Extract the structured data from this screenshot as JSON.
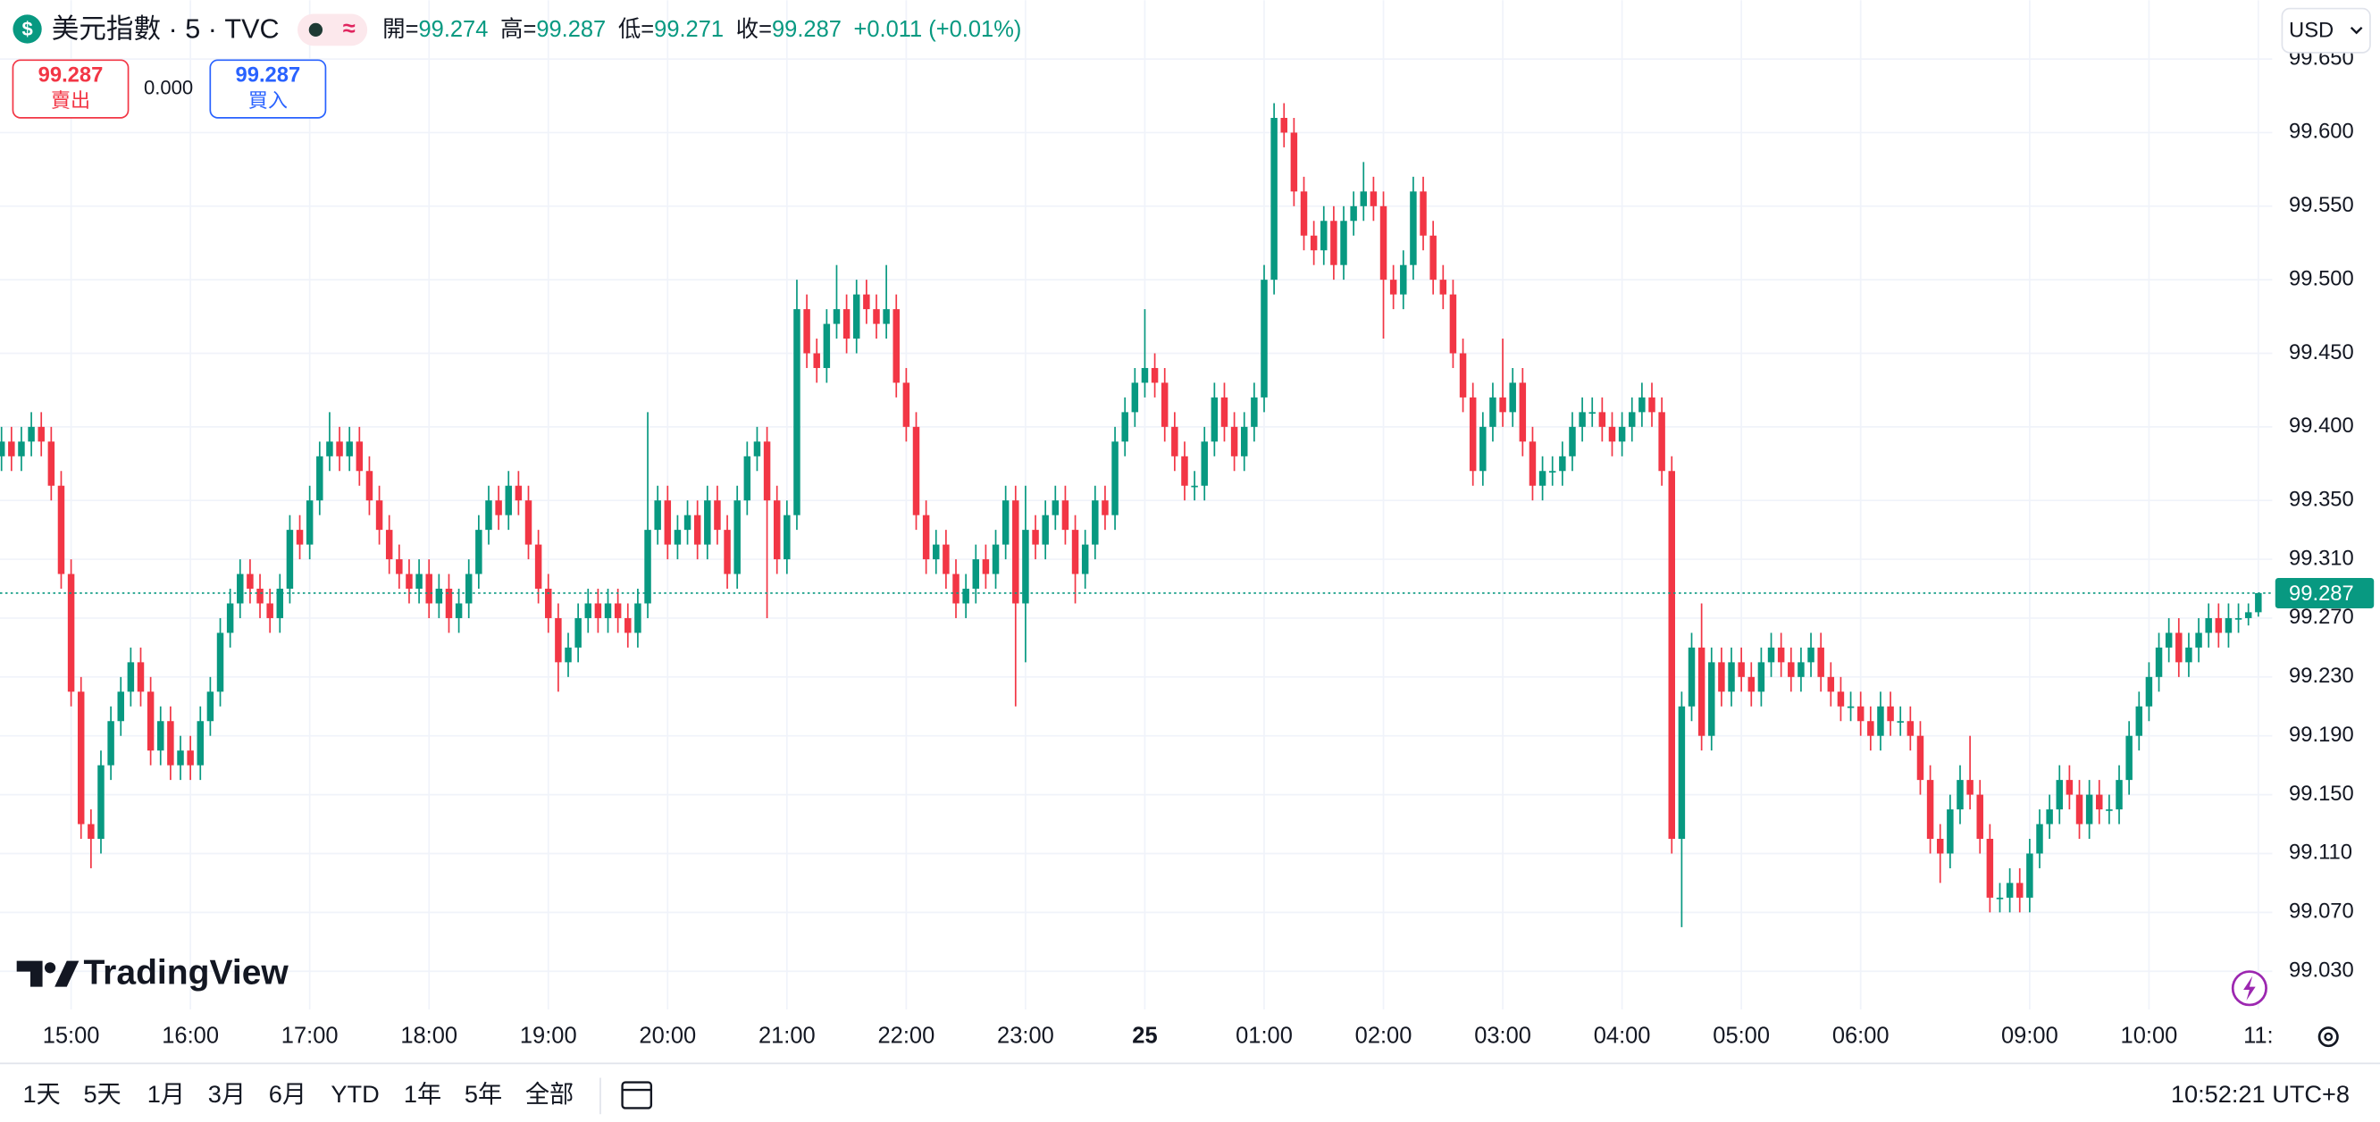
{
  "symbol_icon": "$",
  "status_badge": "≈",
  "quote": {
    "sell_price": "99.287",
    "sell_label": "賣出",
    "spread": "0.000",
    "buy_price": "99.287",
    "buy_label": "買入"
  },
  "currency": "USD",
  "watermark": "TradingView",
  "ranges": [
    "1天",
    "5天",
    "1月",
    "3月",
    "6月",
    "YTD",
    "1年",
    "5年",
    "全部"
  ],
  "clock": "10:52:21 UTC+8",
  "chart_data": {
    "type": "candlestick",
    "title": "美元指數 · 5 · TVC",
    "ohlc_labels": {
      "open": "開=",
      "high": "高=",
      "low": "低=",
      "close": "收="
    },
    "change": "+0.011 (+0.01%)",
    "up_color": "#089981",
    "down_color": "#f23645",
    "grid": true,
    "last_price_line": true,
    "ylim": [
      99.004,
      99.69
    ],
    "yticks": [
      {
        "value": 99.65,
        "label": "99.650"
      },
      {
        "value": 99.6,
        "label": "99.600"
      },
      {
        "value": 99.55,
        "label": "99.550"
      },
      {
        "value": 99.5,
        "label": "99.500"
      },
      {
        "value": 99.45,
        "label": "99.450"
      },
      {
        "value": 99.4,
        "label": "99.400"
      },
      {
        "value": 99.35,
        "label": "99.350"
      },
      {
        "value": 99.31,
        "label": "99.310"
      },
      {
        "value": 99.27,
        "label": "99.270"
      },
      {
        "value": 99.23,
        "label": "99.230"
      },
      {
        "value": 99.19,
        "label": "99.190"
      },
      {
        "value": 99.15,
        "label": "99.150"
      },
      {
        "value": 99.11,
        "label": "99.110"
      },
      {
        "value": 99.07,
        "label": "99.070"
      },
      {
        "value": 99.03,
        "label": "99.030"
      }
    ],
    "categories": [
      null,
      null,
      null,
      null,
      null,
      null,
      null,
      "15:00",
      null,
      null,
      null,
      null,
      null,
      null,
      null,
      null,
      null,
      null,
      null,
      "16:00",
      null,
      null,
      null,
      null,
      null,
      null,
      null,
      null,
      null,
      null,
      null,
      "17:00",
      null,
      null,
      null,
      null,
      null,
      null,
      null,
      null,
      null,
      null,
      null,
      "18:00",
      null,
      null,
      null,
      null,
      null,
      null,
      null,
      null,
      null,
      null,
      null,
      "19:00",
      null,
      null,
      null,
      null,
      null,
      null,
      null,
      null,
      null,
      null,
      null,
      "20:00",
      null,
      null,
      null,
      null,
      null,
      null,
      null,
      null,
      null,
      null,
      null,
      "21:00",
      null,
      null,
      null,
      null,
      null,
      null,
      null,
      null,
      null,
      null,
      null,
      "22:00",
      null,
      null,
      null,
      null,
      null,
      null,
      null,
      null,
      null,
      null,
      null,
      "23:00",
      null,
      null,
      null,
      null,
      null,
      null,
      null,
      null,
      null,
      null,
      null,
      "25",
      null,
      null,
      null,
      null,
      null,
      null,
      null,
      null,
      null,
      null,
      null,
      "01:00",
      null,
      null,
      null,
      null,
      null,
      null,
      null,
      null,
      null,
      null,
      null,
      "02:00",
      null,
      null,
      null,
      null,
      null,
      null,
      null,
      null,
      null,
      null,
      null,
      "03:00",
      null,
      null,
      null,
      null,
      null,
      null,
      null,
      null,
      null,
      null,
      null,
      "04:00",
      null,
      null,
      null,
      null,
      null,
      null,
      null,
      null,
      null,
      null,
      null,
      "05:00",
      null,
      null,
      null,
      null,
      null,
      null,
      null,
      null,
      null,
      null,
      null,
      "06:00",
      null,
      null,
      null,
      null,
      null,
      null,
      null,
      null,
      null,
      null,
      null,
      null,
      null,
      null,
      null,
      null,
      "09:00",
      null,
      null,
      null,
      null,
      null,
      null,
      null,
      null,
      null,
      null,
      null,
      "10:00",
      null,
      null,
      null,
      null,
      null,
      null,
      null,
      null,
      null,
      null,
      "11:"
    ],
    "open": [
      99.38,
      99.39,
      99.38,
      99.39,
      99.4,
      99.39,
      99.36,
      99.3,
      99.22,
      99.13,
      99.12,
      99.17,
      99.2,
      99.22,
      99.24,
      99.22,
      99.18,
      99.2,
      99.17,
      99.18,
      99.17,
      99.2,
      99.22,
      99.26,
      99.28,
      99.3,
      99.29,
      99.28,
      99.27,
      99.29,
      99.33,
      99.32,
      99.35,
      99.38,
      99.39,
      99.38,
      99.39,
      99.37,
      99.35,
      99.33,
      99.31,
      99.3,
      99.29,
      99.3,
      99.28,
      99.29,
      99.27,
      99.28,
      99.3,
      99.33,
      99.35,
      99.34,
      99.36,
      99.35,
      99.32,
      99.29,
      99.27,
      99.24,
      99.25,
      99.27,
      99.28,
      99.27,
      99.28,
      99.27,
      99.26,
      99.28,
      99.33,
      99.35,
      99.32,
      99.33,
      99.34,
      99.32,
      99.35,
      99.33,
      99.3,
      99.35,
      99.38,
      99.39,
      99.35,
      99.31,
      99.34,
      99.48,
      99.45,
      99.44,
      99.47,
      99.48,
      99.46,
      99.49,
      99.48,
      99.47,
      99.48,
      99.43,
      99.4,
      99.34,
      99.31,
      99.32,
      99.3,
      99.28,
      99.29,
      99.31,
      99.3,
      99.32,
      99.35,
      99.28,
      99.33,
      99.32,
      99.34,
      99.35,
      99.33,
      99.3,
      99.32,
      99.35,
      99.34,
      99.39,
      99.41,
      99.43,
      99.44,
      99.43,
      99.4,
      99.38,
      99.36,
      99.36,
      99.39,
      99.42,
      99.4,
      99.38,
      99.4,
      99.42,
      99.5,
      99.61,
      99.6,
      99.56,
      99.53,
      99.52,
      99.54,
      99.51,
      99.54,
      99.55,
      99.56,
      99.55,
      99.5,
      99.49,
      99.51,
      99.56,
      99.53,
      99.5,
      99.49,
      99.45,
      99.42,
      99.37,
      99.4,
      99.42,
      99.41,
      99.43,
      99.39,
      99.36,
      99.37,
      99.37,
      99.38,
      99.4,
      99.41,
      99.41,
      99.4,
      99.39,
      99.4,
      99.41,
      99.42,
      99.41,
      99.37,
      99.12,
      99.21,
      99.25,
      99.19,
      99.24,
      99.22,
      99.24,
      99.23,
      99.22,
      99.24,
      99.25,
      99.24,
      99.23,
      99.24,
      99.25,
      99.23,
      99.22,
      99.21,
      99.21,
      99.2,
      99.19,
      99.21,
      99.2,
      99.2,
      99.19,
      99.16,
      99.12,
      99.11,
      99.14,
      99.16,
      99.15,
      99.12,
      99.08,
      99.08,
      99.09,
      99.08,
      99.11,
      99.13,
      99.14,
      99.16,
      99.15,
      99.13,
      99.15,
      99.14,
      99.14,
      99.16,
      99.19,
      99.21,
      99.23,
      99.25,
      99.26,
      99.24,
      99.25,
      99.26,
      99.27,
      99.26,
      99.27,
      99.27,
      99.274
    ],
    "high": [
      99.4,
      99.4,
      99.4,
      99.41,
      99.41,
      99.4,
      99.37,
      99.31,
      99.23,
      99.14,
      99.18,
      99.21,
      99.23,
      99.25,
      99.25,
      99.23,
      99.21,
      99.21,
      99.19,
      99.19,
      99.21,
      99.23,
      99.27,
      99.29,
      99.31,
      99.31,
      99.3,
      99.29,
      99.3,
      99.34,
      99.34,
      99.36,
      99.39,
      99.41,
      99.4,
      99.4,
      99.4,
      99.38,
      99.36,
      99.34,
      99.32,
      99.31,
      99.31,
      99.31,
      99.3,
      99.3,
      99.29,
      99.31,
      99.34,
      99.36,
      99.36,
      99.37,
      99.37,
      99.36,
      99.33,
      99.3,
      99.28,
      99.26,
      99.28,
      99.29,
      99.29,
      99.29,
      99.29,
      99.28,
      99.29,
      99.41,
      99.36,
      99.36,
      99.34,
      99.35,
      99.35,
      99.36,
      99.36,
      99.34,
      99.36,
      99.39,
      99.4,
      99.4,
      99.36,
      99.35,
      99.5,
      99.49,
      99.46,
      99.48,
      99.51,
      99.49,
      99.5,
      99.5,
      99.49,
      99.51,
      99.49,
      99.44,
      99.41,
      99.35,
      99.33,
      99.33,
      99.31,
      99.3,
      99.32,
      99.32,
      99.33,
      99.36,
      99.36,
      99.36,
      99.34,
      99.35,
      99.36,
      99.36,
      99.34,
      99.33,
      99.36,
      99.36,
      99.4,
      99.42,
      99.44,
      99.48,
      99.45,
      99.44,
      99.41,
      99.39,
      99.37,
      99.4,
      99.43,
      99.43,
      99.41,
      99.41,
      99.43,
      99.51,
      99.62,
      99.62,
      99.61,
      99.57,
      99.54,
      99.55,
      99.55,
      99.55,
      99.56,
      99.58,
      99.57,
      99.56,
      99.51,
      99.52,
      99.57,
      99.57,
      99.54,
      99.51,
      99.5,
      99.46,
      99.43,
      99.41,
      99.43,
      99.46,
      99.44,
      99.44,
      99.4,
      99.38,
      99.38,
      99.39,
      99.41,
      99.42,
      99.42,
      99.42,
      99.41,
      99.41,
      99.42,
      99.43,
      99.43,
      99.42,
      99.38,
      99.22,
      99.26,
      99.28,
      99.25,
      99.25,
      99.25,
      99.25,
      99.24,
      99.25,
      99.26,
      99.26,
      99.25,
      99.25,
      99.26,
      99.26,
      99.24,
      99.23,
      99.22,
      99.22,
      99.21,
      99.22,
      99.22,
      99.21,
      99.21,
      99.2,
      99.17,
      99.13,
      99.15,
      99.17,
      99.19,
      99.16,
      99.13,
      99.09,
      99.1,
      99.1,
      99.12,
      99.14,
      99.15,
      99.17,
      99.17,
      99.16,
      99.16,
      99.16,
      99.15,
      99.17,
      99.2,
      99.22,
      99.24,
      99.26,
      99.27,
      99.27,
      99.26,
      99.27,
      99.28,
      99.28,
      99.28,
      99.28,
      99.28,
      99.287
    ],
    "low": [
      99.37,
      99.37,
      99.37,
      99.38,
      99.38,
      99.35,
      99.29,
      99.21,
      99.12,
      99.1,
      99.11,
      99.16,
      99.19,
      99.21,
      99.21,
      99.17,
      99.17,
      99.16,
      99.16,
      99.16,
      99.16,
      99.19,
      99.21,
      99.25,
      99.27,
      99.28,
      99.27,
      99.26,
      99.26,
      99.28,
      99.31,
      99.31,
      99.34,
      99.37,
      99.37,
      99.37,
      99.36,
      99.34,
      99.32,
      99.3,
      99.29,
      99.28,
      99.28,
      99.27,
      99.27,
      99.26,
      99.26,
      99.27,
      99.29,
      99.32,
      99.33,
      99.33,
      99.34,
      99.31,
      99.28,
      99.26,
      99.22,
      99.23,
      99.24,
      99.26,
      99.26,
      99.26,
      99.26,
      99.25,
      99.25,
      99.27,
      99.32,
      99.31,
      99.31,
      99.32,
      99.31,
      99.31,
      99.32,
      99.29,
      99.29,
      99.34,
      99.37,
      99.27,
      99.3,
      99.3,
      99.33,
      99.44,
      99.43,
      99.43,
      99.46,
      99.45,
      99.45,
      99.47,
      99.46,
      99.46,
      99.42,
      99.39,
      99.33,
      99.3,
      99.3,
      99.29,
      99.27,
      99.27,
      99.28,
      99.29,
      99.29,
      99.31,
      99.21,
      99.24,
      99.31,
      99.31,
      99.33,
      99.32,
      99.28,
      99.29,
      99.31,
      99.33,
      99.33,
      99.38,
      99.4,
      99.42,
      99.42,
      99.39,
      99.37,
      99.35,
      99.35,
      99.35,
      99.38,
      99.39,
      99.37,
      99.37,
      99.39,
      99.41,
      99.49,
      99.59,
      99.55,
      99.52,
      99.51,
      99.51,
      99.5,
      99.5,
      99.53,
      99.54,
      99.54,
      99.46,
      99.48,
      99.48,
      99.5,
      99.52,
      99.49,
      99.48,
      99.44,
      99.41,
      99.36,
      99.36,
      99.39,
      99.4,
      99.4,
      99.38,
      99.35,
      99.35,
      99.36,
      99.36,
      99.37,
      99.39,
      99.4,
      99.39,
      99.38,
      99.38,
      99.39,
      99.4,
      99.4,
      99.36,
      99.11,
      99.06,
      99.2,
      99.18,
      99.18,
      99.21,
      99.21,
      99.22,
      99.21,
      99.21,
      99.23,
      99.23,
      99.22,
      99.22,
      99.23,
      99.22,
      99.21,
      99.2,
      99.2,
      99.19,
      99.18,
      99.18,
      99.19,
      99.19,
      99.18,
      99.15,
      99.11,
      99.09,
      99.1,
      99.13,
      99.14,
      99.11,
      99.07,
      99.07,
      99.07,
      99.07,
      99.07,
      99.1,
      99.12,
      99.13,
      99.14,
      99.12,
      99.12,
      99.13,
      99.13,
      99.13,
      99.15,
      99.18,
      99.2,
      99.22,
      99.24,
      99.23,
      99.23,
      99.24,
      99.25,
      99.25,
      99.25,
      99.26,
      99.265,
      99.271
    ],
    "close": [
      99.39,
      99.38,
      99.39,
      99.4,
      99.39,
      99.36,
      99.3,
      99.22,
      99.13,
      99.12,
      99.17,
      99.2,
      99.22,
      99.24,
      99.22,
      99.18,
      99.2,
      99.17,
      99.18,
      99.17,
      99.2,
      99.22,
      99.26,
      99.28,
      99.3,
      99.29,
      99.28,
      99.27,
      99.29,
      99.33,
      99.32,
      99.35,
      99.38,
      99.39,
      99.38,
      99.39,
      99.37,
      99.35,
      99.33,
      99.31,
      99.3,
      99.29,
      99.3,
      99.28,
      99.29,
      99.27,
      99.28,
      99.3,
      99.33,
      99.35,
      99.34,
      99.36,
      99.35,
      99.32,
      99.29,
      99.27,
      99.24,
      99.25,
      99.27,
      99.28,
      99.27,
      99.28,
      99.27,
      99.26,
      99.28,
      99.33,
      99.35,
      99.32,
      99.33,
      99.34,
      99.32,
      99.35,
      99.33,
      99.3,
      99.35,
      99.38,
      99.39,
      99.35,
      99.31,
      99.34,
      99.48,
      99.45,
      99.44,
      99.47,
      99.48,
      99.46,
      99.49,
      99.48,
      99.47,
      99.48,
      99.43,
      99.4,
      99.34,
      99.31,
      99.32,
      99.3,
      99.28,
      99.29,
      99.31,
      99.3,
      99.32,
      99.35,
      99.28,
      99.33,
      99.32,
      99.34,
      99.35,
      99.33,
      99.3,
      99.32,
      99.35,
      99.34,
      99.39,
      99.41,
      99.43,
      99.44,
      99.43,
      99.4,
      99.38,
      99.36,
      99.36,
      99.39,
      99.42,
      99.4,
      99.38,
      99.4,
      99.42,
      99.5,
      99.61,
      99.6,
      99.56,
      99.53,
      99.52,
      99.54,
      99.51,
      99.54,
      99.55,
      99.56,
      99.55,
      99.5,
      99.49,
      99.51,
      99.56,
      99.53,
      99.5,
      99.49,
      99.45,
      99.42,
      99.37,
      99.4,
      99.42,
      99.41,
      99.43,
      99.39,
      99.36,
      99.37,
      99.37,
      99.38,
      99.4,
      99.41,
      99.41,
      99.4,
      99.39,
      99.4,
      99.41,
      99.42,
      99.41,
      99.37,
      99.12,
      99.21,
      99.25,
      99.19,
      99.24,
      99.22,
      99.24,
      99.23,
      99.22,
      99.24,
      99.25,
      99.24,
      99.23,
      99.24,
      99.25,
      99.23,
      99.22,
      99.21,
      99.21,
      99.2,
      99.19,
      99.21,
      99.2,
      99.2,
      99.19,
      99.16,
      99.12,
      99.11,
      99.14,
      99.16,
      99.15,
      99.12,
      99.08,
      99.08,
      99.09,
      99.08,
      99.11,
      99.13,
      99.14,
      99.16,
      99.15,
      99.13,
      99.15,
      99.14,
      99.14,
      99.16,
      99.19,
      99.21,
      99.23,
      99.25,
      99.26,
      99.24,
      99.25,
      99.26,
      99.27,
      99.26,
      99.27,
      99.27,
      99.274,
      99.287
    ]
  }
}
